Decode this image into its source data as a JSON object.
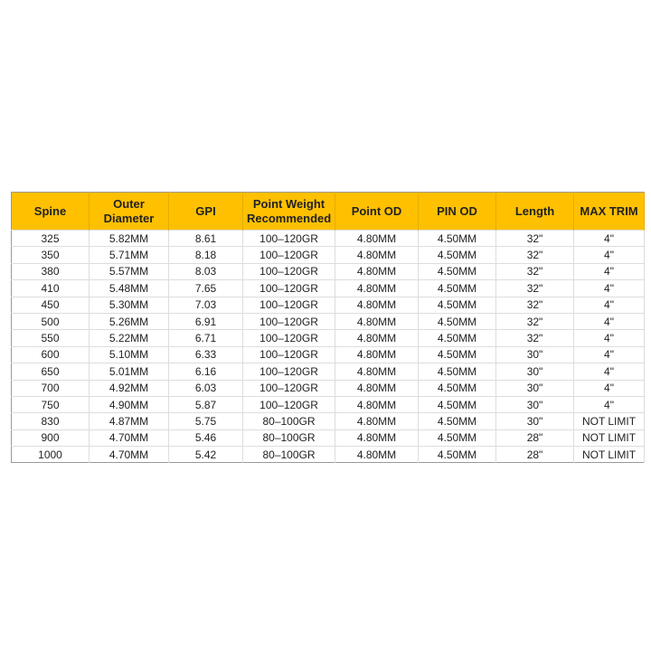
{
  "table": {
    "headers": [
      "Spine",
      "Outer Diameter",
      "GPI",
      "Point Weight Recommended",
      "Point OD",
      "PIN OD",
      "Length",
      "MAX TRIM"
    ],
    "rows": [
      [
        "325",
        "5.82MM",
        "8.61",
        "100–120GR",
        "4.80MM",
        "4.50MM",
        "32\"",
        "4\""
      ],
      [
        "350",
        "5.71MM",
        "8.18",
        "100–120GR",
        "4.80MM",
        "4.50MM",
        "32\"",
        "4\""
      ],
      [
        "380",
        "5.57MM",
        "8.03",
        "100–120GR",
        "4.80MM",
        "4.50MM",
        "32\"",
        "4\""
      ],
      [
        "410",
        "5.48MM",
        "7.65",
        "100–120GR",
        "4.80MM",
        "4.50MM",
        "32\"",
        "4\""
      ],
      [
        "450",
        "5.30MM",
        "7.03",
        "100–120GR",
        "4.80MM",
        "4.50MM",
        "32\"",
        "4\""
      ],
      [
        "500",
        "5.26MM",
        "6.91",
        "100–120GR",
        "4.80MM",
        "4.50MM",
        "32\"",
        "4\""
      ],
      [
        "550",
        "5.22MM",
        "6.71",
        "100–120GR",
        "4.80MM",
        "4.50MM",
        "32\"",
        "4\""
      ],
      [
        "600",
        "5.10MM",
        "6.33",
        "100–120GR",
        "4.80MM",
        "4.50MM",
        "30\"",
        "4\""
      ],
      [
        "650",
        "5.01MM",
        "6.16",
        "100–120GR",
        "4.80MM",
        "4.50MM",
        "30\"",
        "4\""
      ],
      [
        "700",
        "4.92MM",
        "6.03",
        "100–120GR",
        "4.80MM",
        "4.50MM",
        "30\"",
        "4\""
      ],
      [
        "750",
        "4.90MM",
        "5.87",
        "100–120GR",
        "4.80MM",
        "4.50MM",
        "30\"",
        "4\""
      ],
      [
        "830",
        "4.87MM",
        "5.75",
        "80–100GR",
        "4.80MM",
        "4.50MM",
        "30\"",
        "NOT LIMIT"
      ],
      [
        "900",
        "4.70MM",
        "5.46",
        "80–100GR",
        "4.80MM",
        "4.50MM",
        "28\"",
        "NOT LIMIT"
      ],
      [
        "1000",
        "4.70MM",
        "5.42",
        "80–100GR",
        "4.80MM",
        "4.50MM",
        "28\"",
        "NOT LIMIT"
      ]
    ]
  }
}
